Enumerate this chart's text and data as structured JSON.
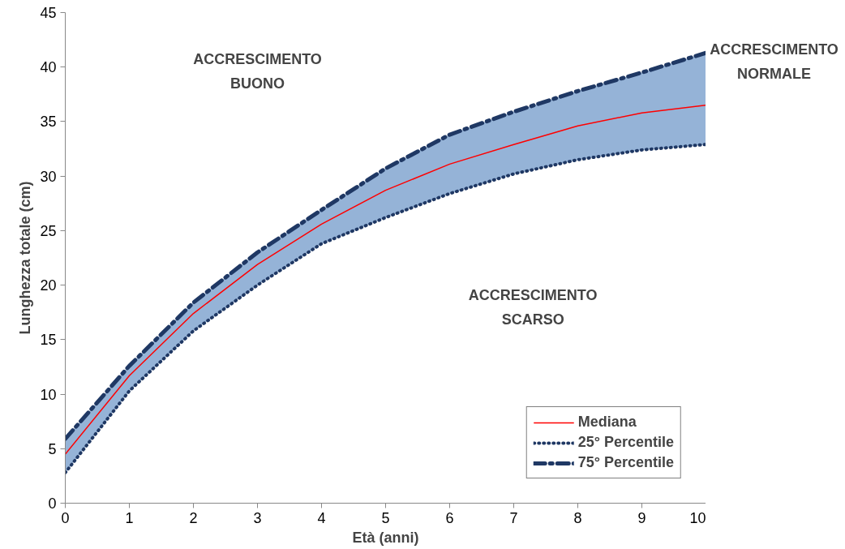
{
  "chart_data": {
    "type": "line",
    "xlabel": "Età (anni)",
    "ylabel": "Lunghezza totale (cm)",
    "x": [
      0,
      1,
      2,
      3,
      4,
      5,
      6,
      7,
      8,
      9,
      10
    ],
    "series": [
      {
        "name": "Mediana",
        "color": "#ff0000",
        "line_style": "solid",
        "values": [
          4.5,
          11.7,
          17.4,
          21.9,
          25.6,
          28.7,
          31.1,
          32.9,
          34.6,
          35.8,
          36.5
        ],
        "lower": [
          2.8,
          10.3,
          15.8,
          20.0,
          23.8,
          26.2,
          28.4,
          30.2,
          31.5,
          32.4,
          32.9
        ],
        "upper": [
          5.9,
          12.6,
          18.4,
          23.0,
          26.9,
          30.7,
          33.8,
          35.9,
          37.8,
          39.5,
          41.3
        ]
      },
      {
        "name": "25° Percentile",
        "color": "#1f3864",
        "line_style": "dotted",
        "values": [
          2.8,
          10.3,
          15.8,
          20.0,
          23.8,
          26.2,
          28.4,
          30.2,
          31.5,
          32.4,
          32.9
        ]
      },
      {
        "name": "75° Percentile",
        "color": "#1f3864",
        "line_style": "dashed",
        "values": [
          5.9,
          12.6,
          18.4,
          23.0,
          26.9,
          30.7,
          33.8,
          35.9,
          37.8,
          39.5,
          41.3
        ]
      }
    ],
    "xlim": [
      0,
      10
    ],
    "ylim": [
      0,
      45
    ],
    "xticks": [
      0,
      1,
      2,
      3,
      4,
      5,
      6,
      7,
      8,
      9,
      10
    ],
    "yticks": [
      0,
      5,
      10,
      15,
      20,
      25,
      30,
      35,
      40,
      45
    ],
    "grid": false,
    "legend": "bottom right",
    "marker": "none",
    "annotations": [
      "ACCRESCIMENTO\nBUONO",
      "ACCRESCIMENTO\nSCARSO",
      "ACCRESCIMENTO\nNORMALE"
    ]
  }
}
